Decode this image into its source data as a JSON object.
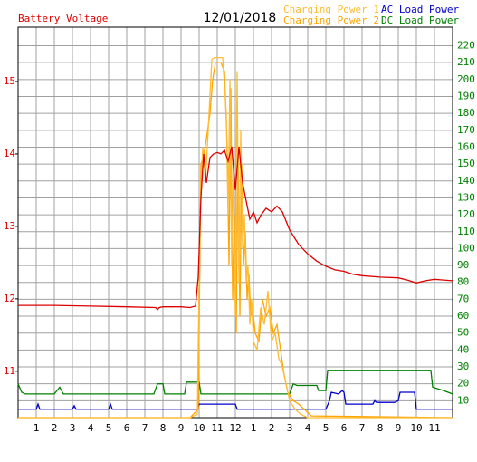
{
  "chart_data": {
    "type": "line",
    "title": "12/01/2018",
    "xlim": [
      0,
      24
    ],
    "xticks": [
      1,
      2,
      3,
      4,
      5,
      6,
      7,
      8,
      9,
      10,
      11,
      12,
      {
        "value": 13,
        "label": "1"
      },
      {
        "value": 14,
        "label": "2"
      },
      {
        "value": 15,
        "label": "3"
      },
      {
        "value": 16,
        "label": "4"
      },
      {
        "value": 17,
        "label": "5"
      },
      {
        "value": 18,
        "label": "6"
      },
      {
        "value": 19,
        "label": "7"
      },
      {
        "value": 20,
        "label": "8"
      },
      {
        "value": 21,
        "label": "9"
      },
      {
        "value": 22,
        "label": "10"
      },
      {
        "value": 23,
        "label": "11"
      }
    ],
    "ylim": [
      10.36,
      15.75
    ],
    "yticks": [
      11,
      12,
      13,
      14,
      15
    ],
    "y2lim": [
      0,
      231
    ],
    "y2ticks": [
      10,
      20,
      30,
      40,
      50,
      60,
      70,
      80,
      90,
      100,
      110,
      120,
      130,
      140,
      150,
      160,
      170,
      180,
      190,
      200,
      210,
      220
    ],
    "grid": true,
    "series": [
      {
        "name": "Battery Voltage",
        "color": "#dd0000",
        "axis": "y",
        "x": [
          0,
          2,
          4,
          6,
          7.6,
          7.7,
          7.8,
          8,
          9,
          9.5,
          9.8,
          9.95,
          10.1,
          10.25,
          10.4,
          10.6,
          10.8,
          11,
          11.2,
          11.4,
          11.6,
          11.8,
          12,
          12.2,
          12.4,
          12.6,
          12.8,
          13,
          13.2,
          13.4,
          13.7,
          14,
          14.3,
          14.6,
          15,
          15.5,
          16,
          16.5,
          17,
          17.5,
          18,
          18.5,
          19,
          20,
          21,
          21.5,
          22,
          22.5,
          23,
          23.5,
          24
        ],
        "values": [
          11.91,
          11.91,
          11.9,
          11.89,
          11.88,
          11.85,
          11.88,
          11.89,
          11.89,
          11.88,
          11.9,
          12.3,
          13.4,
          14.0,
          13.6,
          13.95,
          14.0,
          14.02,
          14.0,
          14.05,
          13.9,
          14.1,
          13.5,
          14.1,
          13.6,
          13.35,
          13.1,
          13.2,
          13.05,
          13.15,
          13.25,
          13.2,
          13.28,
          13.2,
          12.95,
          12.75,
          12.62,
          12.52,
          12.45,
          12.4,
          12.38,
          12.34,
          12.32,
          12.3,
          12.29,
          12.26,
          12.22,
          12.25,
          12.27,
          12.26,
          12.25
        ]
      },
      {
        "name": "Charging Power 1",
        "color": "#ffbb33",
        "axis": "y2",
        "x": [
          0,
          9.5,
          9.9,
          10.05,
          10.2,
          10.35,
          10.5,
          10.7,
          10.85,
          11,
          11.3,
          11.5,
          11.6,
          11.7,
          11.8,
          11.9,
          12,
          12.1,
          12.2,
          12.3,
          12.4,
          12.5,
          12.6,
          12.7,
          12.8,
          12.9,
          13,
          13.2,
          13.4,
          13.6,
          13.8,
          14,
          14.2,
          14.4,
          14.6,
          14.8,
          15,
          15.3,
          15.6,
          16,
          24
        ],
        "values": [
          0,
          0,
          2,
          120,
          160,
          140,
          170,
          212,
          213,
          213,
          213,
          180,
          120,
          200,
          90,
          150,
          60,
          205,
          80,
          170,
          100,
          120,
          80,
          90,
          55,
          70,
          45,
          40,
          65,
          55,
          75,
          45,
          50,
          35,
          30,
          20,
          10,
          5,
          2,
          0,
          0
        ]
      },
      {
        "name": "Charging Power 2",
        "color": "#ffa500",
        "axis": "y2",
        "x": [
          0,
          9.5,
          9.95,
          10.1,
          10.25,
          10.4,
          10.6,
          10.75,
          10.9,
          11.2,
          11.4,
          11.55,
          11.65,
          11.75,
          11.85,
          11.95,
          12.05,
          12.15,
          12.25,
          12.35,
          12.45,
          12.55,
          12.65,
          12.75,
          12.85,
          12.95,
          13.1,
          13.3,
          13.5,
          13.7,
          13.9,
          14.1,
          14.3,
          14.5,
          14.7,
          14.9,
          15.2,
          15.5,
          15.8,
          16.2,
          24
        ],
        "values": [
          0,
          0,
          5,
          150,
          155,
          165,
          180,
          200,
          210,
          210,
          205,
          160,
          90,
          195,
          70,
          120,
          50,
          160,
          60,
          150,
          90,
          110,
          70,
          85,
          60,
          65,
          50,
          45,
          70,
          60,
          65,
          50,
          55,
          40,
          25,
          15,
          10,
          8,
          5,
          1,
          0
        ]
      },
      {
        "name": "AC Load Power",
        "color": "#0000cc",
        "axis": "y2",
        "x": [
          0,
          1,
          1.1,
          1.2,
          3,
          3.1,
          3.2,
          5,
          5.1,
          5.2,
          8,
          9.9,
          10,
          12,
          12.1,
          13,
          15,
          17,
          17.2,
          17.3,
          17.7,
          17.9,
          18,
          18.1,
          18.4,
          18.5,
          19.6,
          19.7,
          19.8,
          20.8,
          21,
          21.1,
          21.9,
          22,
          24
        ],
        "values": [
          5,
          5,
          8,
          5,
          5,
          7,
          5,
          5,
          8,
          5,
          5,
          5,
          8,
          8,
          5,
          5,
          5,
          5,
          10,
          15,
          14,
          16,
          15,
          8,
          8,
          8,
          8,
          10,
          9,
          9,
          10,
          15,
          15,
          5,
          5
        ]
      },
      {
        "name": "DC Load Power",
        "color": "#008000",
        "axis": "y2",
        "x": [
          0,
          0.2,
          0.4,
          2,
          2.3,
          2.5,
          7.5,
          7.7,
          8,
          8.1,
          9.2,
          9.3,
          10,
          10.1,
          15,
          15.2,
          15.4,
          16.5,
          16.6,
          17,
          17.1,
          22.8,
          22.9,
          23.5,
          24
        ],
        "values": [
          20,
          15,
          14,
          14,
          18,
          14,
          14,
          20,
          20,
          14,
          14,
          21,
          21,
          14,
          14,
          20,
          19,
          19,
          16,
          16,
          28,
          28,
          18,
          16,
          14
        ]
      }
    ]
  }
}
